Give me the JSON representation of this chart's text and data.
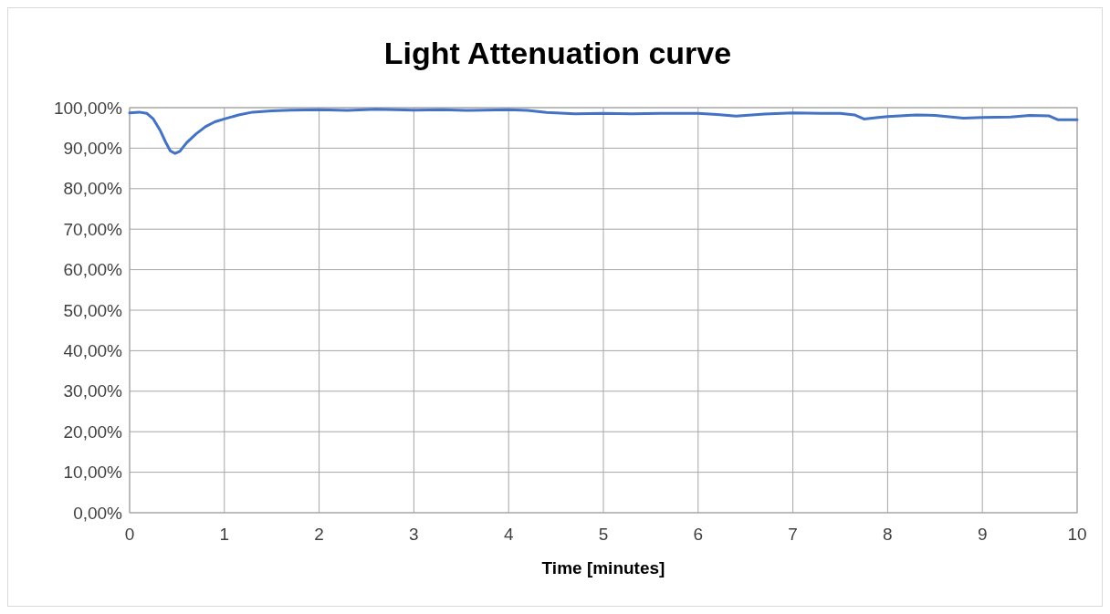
{
  "chart_data": {
    "type": "line",
    "title": "Light Attenuation curve",
    "xlabel": "Time [minutes]",
    "x": [
      0,
      0.1,
      0.18,
      0.25,
      0.32,
      0.38,
      0.43,
      0.48,
      0.53,
      0.6,
      0.7,
      0.8,
      0.9,
      1,
      1.15,
      1.3,
      1.5,
      1.7,
      2,
      2.3,
      2.6,
      3,
      3.3,
      3.6,
      4,
      4.2,
      4.4,
      4.7,
      5,
      5.3,
      5.6,
      6,
      6.2,
      6.4,
      6.7,
      7,
      7.3,
      7.5,
      7.65,
      7.75,
      7.9,
      8,
      8.3,
      8.5,
      8.8,
      9,
      9.3,
      9.5,
      9.7,
      9.8,
      10
    ],
    "series": [
      {
        "color": "#4472c4",
        "values": [
          98.7,
          98.9,
          98.6,
          97.2,
          94.5,
          91.5,
          89.3,
          88.7,
          89.2,
          91.3,
          93.5,
          95.3,
          96.5,
          97.2,
          98.2,
          98.9,
          99.2,
          99.4,
          99.5,
          99.3,
          99.6,
          99.4,
          99.5,
          99.3,
          99.5,
          99.3,
          98.8,
          98.5,
          98.6,
          98.5,
          98.6,
          98.6,
          98.3,
          97.9,
          98.4,
          98.7,
          98.6,
          98.6,
          98.2,
          97.2,
          97.6,
          97.8,
          98.2,
          98.1,
          97.4,
          97.6,
          97.7,
          98.1,
          98.0,
          97.0,
          97.0
        ]
      }
    ],
    "xlim": [
      0,
      10
    ],
    "xticks": [
      0,
      1,
      2,
      3,
      4,
      5,
      6,
      7,
      8,
      9,
      10
    ],
    "ylim": [
      0,
      100
    ],
    "yticks": [
      {
        "value": 0,
        "label": "0,00%"
      },
      {
        "value": 10,
        "label": "10,00%"
      },
      {
        "value": 20,
        "label": "20,00%"
      },
      {
        "value": 30,
        "label": "30,00%"
      },
      {
        "value": 40,
        "label": "40,00%"
      },
      {
        "value": 50,
        "label": "50,00%"
      },
      {
        "value": 60,
        "label": "60,00%"
      },
      {
        "value": 70,
        "label": "70,00%"
      },
      {
        "value": 80,
        "label": "80,00%"
      },
      {
        "value": 90,
        "label": "90,00%"
      },
      {
        "value": 100,
        "label": "100,00%"
      }
    ],
    "grid": true,
    "marker": "none",
    "line_style": "solid"
  }
}
